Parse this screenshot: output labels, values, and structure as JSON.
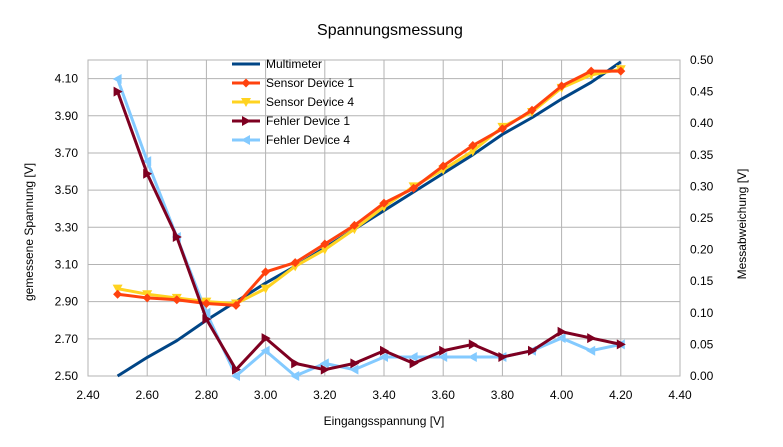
{
  "chart_data": {
    "type": "line",
    "title": "Spannungsmessung",
    "xlabel": "Eingangsspannung [V]",
    "ylabel": "gemessene Spannung [V]",
    "y2label": "Messabweichung [V]",
    "xlim": [
      2.4,
      4.4
    ],
    "ylim": [
      2.5,
      4.2
    ],
    "y2lim": [
      0.0,
      0.5
    ],
    "x_ticks": [
      "2.40",
      "2.60",
      "2.80",
      "3.00",
      "3.20",
      "3.40",
      "3.60",
      "3.80",
      "4.00",
      "4.20",
      "4.40"
    ],
    "y_ticks": [
      "2.50",
      "2.70",
      "2.90",
      "3.10",
      "3.30",
      "3.50",
      "3.70",
      "3.90",
      "4.10"
    ],
    "y2_ticks": [
      "0.00",
      "0.05",
      "0.10",
      "0.15",
      "0.20",
      "0.25",
      "0.30",
      "0.35",
      "0.40",
      "0.45",
      "0.50"
    ],
    "grid": true,
    "legend_position": "top-center",
    "x": [
      2.5,
      2.6,
      2.7,
      2.8,
      2.9,
      3.0,
      3.1,
      3.2,
      3.3,
      3.4,
      3.5,
      3.6,
      3.7,
      3.8,
      3.9,
      4.0,
      4.1,
      4.2
    ],
    "series": [
      {
        "name": "Multimeter",
        "axis": "left",
        "color": "#004586",
        "marker": "none",
        "values": [
          2.5,
          2.6,
          2.69,
          2.8,
          2.9,
          3.0,
          3.09,
          3.19,
          3.29,
          3.39,
          3.49,
          3.59,
          3.69,
          3.8,
          3.89,
          3.99,
          4.08,
          4.19
        ]
      },
      {
        "name": "Sensor Device 1",
        "axis": "left",
        "color": "#ff420e",
        "marker": "diamond",
        "values": [
          2.94,
          2.92,
          2.91,
          2.89,
          2.88,
          3.06,
          3.11,
          3.21,
          3.31,
          3.43,
          3.51,
          3.63,
          3.74,
          3.83,
          3.93,
          4.06,
          4.14,
          4.14
        ]
      },
      {
        "name": "Sensor Device 4",
        "axis": "left",
        "color": "#ffd320",
        "marker": "triangle-down",
        "values": [
          2.97,
          2.94,
          2.92,
          2.9,
          2.89,
          2.97,
          3.09,
          3.18,
          3.29,
          3.41,
          3.52,
          3.61,
          3.71,
          3.84,
          3.92,
          4.05,
          4.12,
          4.15
        ]
      },
      {
        "name": "Fehler Device 1",
        "axis": "right",
        "color": "#7e0021",
        "marker": "triangle-right",
        "values": [
          0.45,
          0.32,
          0.22,
          0.09,
          0.01,
          0.06,
          0.02,
          0.01,
          0.02,
          0.04,
          0.02,
          0.04,
          0.05,
          0.03,
          0.04,
          0.07,
          0.06,
          0.05
        ]
      },
      {
        "name": "Fehler Device 4",
        "axis": "right",
        "color": "#83caff",
        "marker": "triangle-left",
        "values": [
          0.47,
          0.34,
          0.22,
          0.1,
          0.0,
          0.04,
          0.0,
          0.02,
          0.01,
          0.03,
          0.03,
          0.03,
          0.03,
          0.03,
          0.04,
          0.06,
          0.04,
          0.05
        ]
      }
    ]
  }
}
